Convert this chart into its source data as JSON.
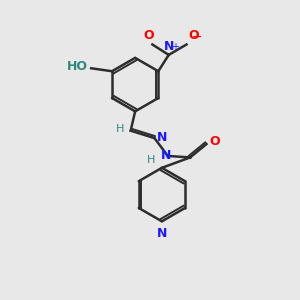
{
  "background_color": "#e8e8e8",
  "bond_color": "#2d2d2d",
  "atom_colors": {
    "N": "#1a1aff",
    "O": "#ff0000",
    "C": "#2d8a7a",
    "H": "#2d8a7a"
  },
  "title": "",
  "figsize": [
    3.0,
    3.0
  ],
  "dpi": 100
}
